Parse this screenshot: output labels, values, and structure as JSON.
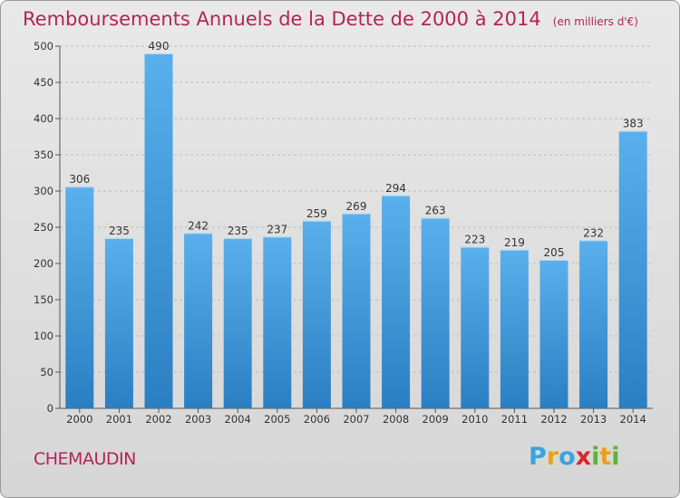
{
  "title": "Remboursements Annuels de la Dette de 2000 à 2014",
  "subtitle": "(en milliers d'€)",
  "footer_name": "CHEMAUDIN",
  "logo": {
    "text": "Proxiti",
    "letters": [
      {
        "ch": "P",
        "color": "#3aa3dd"
      },
      {
        "ch": "r",
        "color": "#e8a21a"
      },
      {
        "ch": "o",
        "color": "#3aa3dd"
      },
      {
        "ch": "x",
        "color": "#d8262e"
      },
      {
        "ch": "i",
        "color": "#5db33a"
      },
      {
        "ch": "t",
        "color": "#e8a21a"
      },
      {
        "ch": "i",
        "color": "#5db33a"
      }
    ]
  },
  "colors": {
    "title": "#b5235a",
    "bar_light": "#5ab0ec",
    "bar_dark": "#2a7fc2",
    "grid": "#bbbbbb"
  },
  "chart_data": {
    "type": "bar",
    "categories": [
      "2000",
      "2001",
      "2002",
      "2003",
      "2004",
      "2005",
      "2006",
      "2007",
      "2008",
      "2009",
      "2010",
      "2011",
      "2012",
      "2013",
      "2014"
    ],
    "values": [
      306,
      235,
      490,
      242,
      235,
      237,
      259,
      269,
      294,
      263,
      223,
      219,
      205,
      232,
      383
    ],
    "ylim": [
      0,
      500
    ],
    "yticks": [
      0,
      50,
      100,
      150,
      200,
      250,
      300,
      350,
      400,
      450,
      500
    ],
    "grid": true,
    "xlabel": "",
    "ylabel": ""
  }
}
